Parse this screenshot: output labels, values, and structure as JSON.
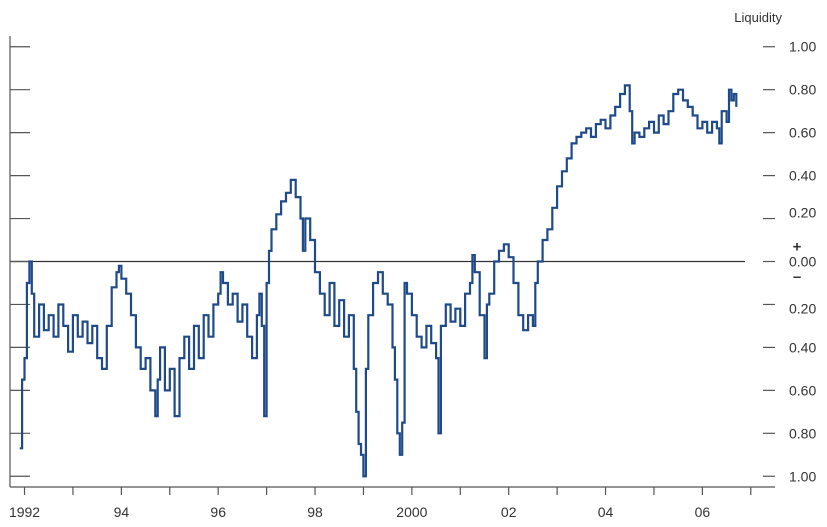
{
  "chart_data": {
    "type": "line",
    "title": "",
    "xlabel": "",
    "ylabel": "Liquidity",
    "xlim": [
      1991.7,
      2007.5
    ],
    "ylim": [
      -1.05,
      1.05
    ],
    "grid": false,
    "zero_line": true,
    "sign_markers": [
      "+",
      "–"
    ],
    "x_ticks": [
      1992,
      1993,
      1994,
      1995,
      1996,
      1997,
      1998,
      1999,
      2000,
      2001,
      2002,
      2003,
      2004,
      2005,
      2006,
      2007
    ],
    "x_tick_labels": [
      {
        "x": 1992,
        "label": "1992"
      },
      {
        "x": 1994,
        "label": "94"
      },
      {
        "x": 1996,
        "label": "96"
      },
      {
        "x": 1998,
        "label": "98"
      },
      {
        "x": 2000,
        "label": "2000"
      },
      {
        "x": 2002,
        "label": "02"
      },
      {
        "x": 2004,
        "label": "04"
      },
      {
        "x": 2006,
        "label": "06"
      }
    ],
    "y_ticks": [
      1.0,
      0.8,
      0.6,
      0.4,
      0.2,
      0.0,
      -0.2,
      -0.4,
      -0.6,
      -0.8,
      -1.0
    ],
    "y_tick_labels": [
      "1.00",
      "0.80",
      "0.60",
      "0.40",
      "0.20",
      "0.00",
      "0.20",
      "0.40",
      "0.60",
      "0.80",
      "1.00"
    ],
    "colors": {
      "series": "#1f4a8a",
      "axis": "#555555",
      "zero_line": "#333333"
    },
    "series": [
      {
        "name": "",
        "points": [
          [
            1991.9,
            -0.87
          ],
          [
            1991.95,
            -0.55
          ],
          [
            1992.0,
            -0.45
          ],
          [
            1992.05,
            -0.1
          ],
          [
            1992.1,
            0.0
          ],
          [
            1992.15,
            -0.15
          ],
          [
            1992.2,
            -0.35
          ],
          [
            1992.3,
            -0.2
          ],
          [
            1992.4,
            -0.32
          ],
          [
            1992.5,
            -0.25
          ],
          [
            1992.6,
            -0.35
          ],
          [
            1992.7,
            -0.2
          ],
          [
            1992.8,
            -0.3
          ],
          [
            1992.9,
            -0.42
          ],
          [
            1993.0,
            -0.25
          ],
          [
            1993.1,
            -0.35
          ],
          [
            1993.2,
            -0.28
          ],
          [
            1993.3,
            -0.38
          ],
          [
            1993.4,
            -0.3
          ],
          [
            1993.5,
            -0.45
          ],
          [
            1993.6,
            -0.5
          ],
          [
            1993.7,
            -0.3
          ],
          [
            1993.8,
            -0.12
          ],
          [
            1993.9,
            -0.05
          ],
          [
            1993.95,
            -0.02
          ],
          [
            1994.0,
            -0.08
          ],
          [
            1994.1,
            -0.15
          ],
          [
            1994.2,
            -0.25
          ],
          [
            1994.3,
            -0.4
          ],
          [
            1994.4,
            -0.5
          ],
          [
            1994.5,
            -0.45
          ],
          [
            1994.6,
            -0.6
          ],
          [
            1994.7,
            -0.72
          ],
          [
            1994.75,
            -0.55
          ],
          [
            1994.8,
            -0.4
          ],
          [
            1994.9,
            -0.6
          ],
          [
            1995.0,
            -0.5
          ],
          [
            1995.1,
            -0.72
          ],
          [
            1995.2,
            -0.45
          ],
          [
            1995.3,
            -0.35
          ],
          [
            1995.4,
            -0.5
          ],
          [
            1995.5,
            -0.3
          ],
          [
            1995.6,
            -0.45
          ],
          [
            1995.7,
            -0.25
          ],
          [
            1995.8,
            -0.35
          ],
          [
            1995.9,
            -0.2
          ],
          [
            1996.0,
            -0.15
          ],
          [
            1996.05,
            -0.05
          ],
          [
            1996.1,
            -0.1
          ],
          [
            1996.2,
            -0.2
          ],
          [
            1996.3,
            -0.15
          ],
          [
            1996.4,
            -0.28
          ],
          [
            1996.5,
            -0.2
          ],
          [
            1996.6,
            -0.35
          ],
          [
            1996.7,
            -0.45
          ],
          [
            1996.8,
            -0.25
          ],
          [
            1996.85,
            -0.15
          ],
          [
            1996.9,
            -0.3
          ],
          [
            1996.95,
            -0.72
          ],
          [
            1997.0,
            -0.1
          ],
          [
            1997.05,
            0.05
          ],
          [
            1997.1,
            0.15
          ],
          [
            1997.2,
            0.22
          ],
          [
            1997.3,
            0.28
          ],
          [
            1997.4,
            0.32
          ],
          [
            1997.5,
            0.38
          ],
          [
            1997.6,
            0.3
          ],
          [
            1997.7,
            0.2
          ],
          [
            1997.75,
            0.05
          ],
          [
            1997.8,
            0.2
          ],
          [
            1997.9,
            0.1
          ],
          [
            1998.0,
            -0.05
          ],
          [
            1998.1,
            -0.15
          ],
          [
            1998.2,
            -0.25
          ],
          [
            1998.3,
            -0.1
          ],
          [
            1998.4,
            -0.3
          ],
          [
            1998.5,
            -0.18
          ],
          [
            1998.6,
            -0.35
          ],
          [
            1998.7,
            -0.25
          ],
          [
            1998.8,
            -0.5
          ],
          [
            1998.85,
            -0.7
          ],
          [
            1998.9,
            -0.85
          ],
          [
            1998.95,
            -0.9
          ],
          [
            1999.0,
            -1.0
          ],
          [
            1999.05,
            -0.5
          ],
          [
            1999.1,
            -0.25
          ],
          [
            1999.2,
            -0.1
          ],
          [
            1999.3,
            -0.05
          ],
          [
            1999.4,
            -0.15
          ],
          [
            1999.5,
            -0.2
          ],
          [
            1999.6,
            -0.4
          ],
          [
            1999.65,
            -0.55
          ],
          [
            1999.7,
            -0.8
          ],
          [
            1999.75,
            -0.9
          ],
          [
            1999.8,
            -0.75
          ],
          [
            1999.85,
            -0.1
          ],
          [
            1999.9,
            -0.15
          ],
          [
            2000.0,
            -0.25
          ],
          [
            2000.1,
            -0.35
          ],
          [
            2000.2,
            -0.4
          ],
          [
            2000.3,
            -0.3
          ],
          [
            2000.4,
            -0.38
          ],
          [
            2000.5,
            -0.45
          ],
          [
            2000.55,
            -0.8
          ],
          [
            2000.6,
            -0.3
          ],
          [
            2000.7,
            -0.2
          ],
          [
            2000.8,
            -0.28
          ],
          [
            2000.9,
            -0.22
          ],
          [
            2001.0,
            -0.3
          ],
          [
            2001.1,
            -0.15
          ],
          [
            2001.2,
            -0.1
          ],
          [
            2001.25,
            0.03
          ],
          [
            2001.3,
            -0.05
          ],
          [
            2001.4,
            -0.25
          ],
          [
            2001.5,
            -0.45
          ],
          [
            2001.55,
            -0.2
          ],
          [
            2001.6,
            -0.15
          ],
          [
            2001.7,
            0.0
          ],
          [
            2001.8,
            0.05
          ],
          [
            2001.9,
            0.08
          ],
          [
            2002.0,
            0.02
          ],
          [
            2002.1,
            -0.1
          ],
          [
            2002.2,
            -0.25
          ],
          [
            2002.3,
            -0.32
          ],
          [
            2002.4,
            -0.25
          ],
          [
            2002.5,
            -0.3
          ],
          [
            2002.55,
            -0.1
          ],
          [
            2002.6,
            0.0
          ],
          [
            2002.7,
            0.1
          ],
          [
            2002.8,
            0.15
          ],
          [
            2002.9,
            0.25
          ],
          [
            2003.0,
            0.35
          ],
          [
            2003.1,
            0.42
          ],
          [
            2003.2,
            0.48
          ],
          [
            2003.3,
            0.55
          ],
          [
            2003.4,
            0.58
          ],
          [
            2003.5,
            0.6
          ],
          [
            2003.6,
            0.62
          ],
          [
            2003.7,
            0.58
          ],
          [
            2003.8,
            0.64
          ],
          [
            2003.9,
            0.66
          ],
          [
            2004.0,
            0.62
          ],
          [
            2004.1,
            0.68
          ],
          [
            2004.2,
            0.72
          ],
          [
            2004.3,
            0.78
          ],
          [
            2004.4,
            0.82
          ],
          [
            2004.5,
            0.7
          ],
          [
            2004.55,
            0.55
          ],
          [
            2004.6,
            0.6
          ],
          [
            2004.7,
            0.58
          ],
          [
            2004.8,
            0.62
          ],
          [
            2004.9,
            0.65
          ],
          [
            2005.0,
            0.6
          ],
          [
            2005.1,
            0.68
          ],
          [
            2005.2,
            0.64
          ],
          [
            2005.3,
            0.7
          ],
          [
            2005.4,
            0.78
          ],
          [
            2005.5,
            0.8
          ],
          [
            2005.6,
            0.75
          ],
          [
            2005.7,
            0.72
          ],
          [
            2005.8,
            0.68
          ],
          [
            2005.9,
            0.62
          ],
          [
            2006.0,
            0.65
          ],
          [
            2006.1,
            0.6
          ],
          [
            2006.2,
            0.65
          ],
          [
            2006.3,
            0.62
          ],
          [
            2006.35,
            0.55
          ],
          [
            2006.4,
            0.7
          ],
          [
            2006.5,
            0.65
          ],
          [
            2006.55,
            0.8
          ],
          [
            2006.6,
            0.75
          ],
          [
            2006.65,
            0.78
          ],
          [
            2006.7,
            0.72
          ]
        ]
      }
    ]
  }
}
